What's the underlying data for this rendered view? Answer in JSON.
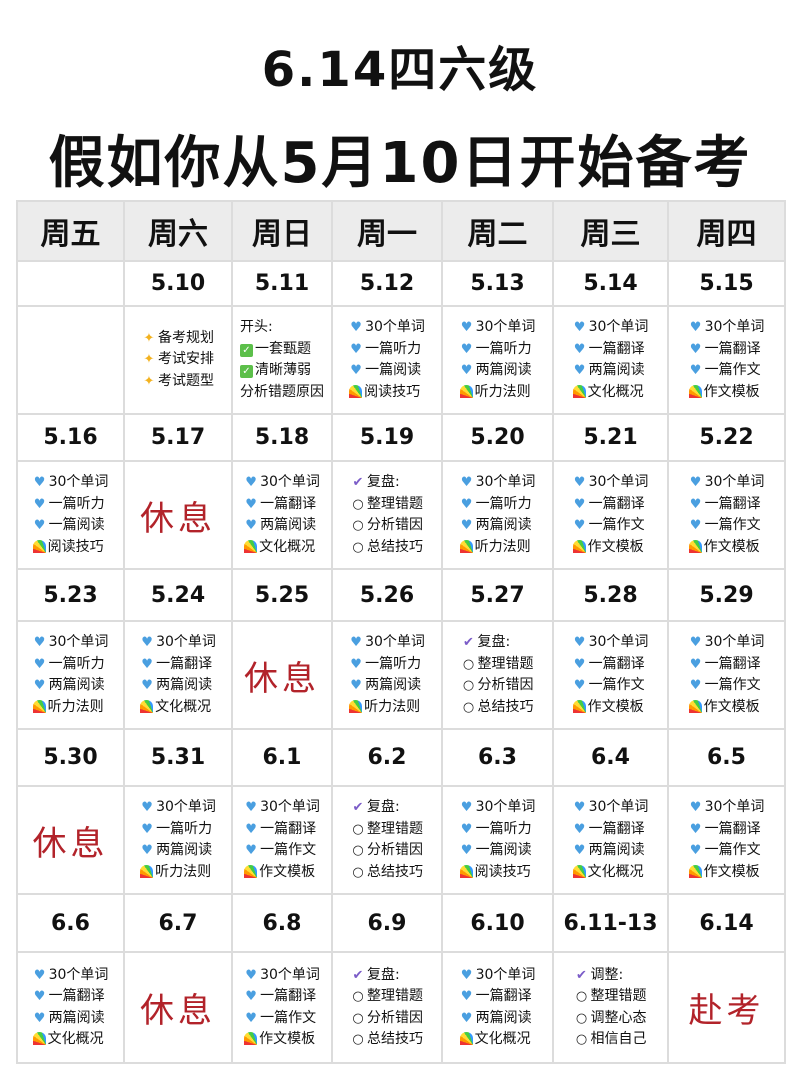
{
  "title_line1": "6.14四六级",
  "title_line2": "假如你从5月10日开始备考",
  "colors": {
    "rest_text": "#b2232a",
    "header_bg": "#ececec",
    "heart": "#4a9fe0"
  },
  "weekdays": [
    "周五",
    "周六",
    "周日",
    "周一",
    "周二",
    "周三",
    "周四"
  ],
  "weeks": [
    {
      "days": [
        {
          "date": "",
          "type": "empty"
        },
        {
          "date": "5.10",
          "type": "tasks",
          "items": [
            {
              "icon": "sparkle",
              "text": "备考规划"
            },
            {
              "icon": "sparkle",
              "text": "考试安排"
            },
            {
              "icon": "sparkle",
              "text": "考试题型"
            }
          ]
        },
        {
          "date": "5.11",
          "type": "tasks",
          "items": [
            {
              "icon": "",
              "text": "开头:"
            },
            {
              "icon": "check-box",
              "text": "一套甄题"
            },
            {
              "icon": "check-box",
              "text": "清晰薄弱"
            },
            {
              "icon": "",
              "text": "分析错题原因"
            }
          ]
        },
        {
          "date": "5.12",
          "type": "tasks",
          "items": [
            {
              "icon": "heart",
              "text": "30个单词"
            },
            {
              "icon": "heart",
              "text": "一篇听力"
            },
            {
              "icon": "heart",
              "text": "一篇阅读"
            },
            {
              "icon": "rainbow",
              "text": "阅读技巧"
            }
          ]
        },
        {
          "date": "5.13",
          "type": "tasks",
          "items": [
            {
              "icon": "heart",
              "text": "30个单词"
            },
            {
              "icon": "heart",
              "text": "一篇听力"
            },
            {
              "icon": "heart",
              "text": "两篇阅读"
            },
            {
              "icon": "rainbow",
              "text": "听力法则"
            }
          ]
        },
        {
          "date": "5.14",
          "type": "tasks",
          "items": [
            {
              "icon": "heart",
              "text": "30个单词"
            },
            {
              "icon": "heart",
              "text": "一篇翻译"
            },
            {
              "icon": "heart",
              "text": "两篇阅读"
            },
            {
              "icon": "rainbow",
              "text": "文化概况"
            }
          ]
        },
        {
          "date": "5.15",
          "type": "tasks",
          "items": [
            {
              "icon": "heart",
              "text": "30个单词"
            },
            {
              "icon": "heart",
              "text": "一篇翻译"
            },
            {
              "icon": "heart",
              "text": "一篇作文"
            },
            {
              "icon": "rainbow",
              "text": "作文模板"
            }
          ]
        }
      ]
    },
    {
      "days": [
        {
          "date": "5.16",
          "type": "tasks",
          "items": [
            {
              "icon": "heart",
              "text": "30个单词"
            },
            {
              "icon": "heart",
              "text": "一篇听力"
            },
            {
              "icon": "heart",
              "text": "一篇阅读"
            },
            {
              "icon": "rainbow",
              "text": "阅读技巧"
            }
          ]
        },
        {
          "date": "5.17",
          "type": "rest",
          "text": "休息"
        },
        {
          "date": "5.18",
          "type": "tasks",
          "items": [
            {
              "icon": "heart",
              "text": "30个单词"
            },
            {
              "icon": "heart",
              "text": "一篇翻译"
            },
            {
              "icon": "heart",
              "text": "两篇阅读"
            },
            {
              "icon": "rainbow",
              "text": "文化概况"
            }
          ]
        },
        {
          "date": "5.19",
          "type": "tasks",
          "items": [
            {
              "icon": "check",
              "text": "复盘:"
            },
            {
              "icon": "circle",
              "text": "整理错题"
            },
            {
              "icon": "circle",
              "text": "分析错因"
            },
            {
              "icon": "circle",
              "text": "总结技巧"
            }
          ]
        },
        {
          "date": "5.20",
          "type": "tasks",
          "items": [
            {
              "icon": "heart",
              "text": "30个单词"
            },
            {
              "icon": "heart",
              "text": "一篇听力"
            },
            {
              "icon": "heart",
              "text": "两篇阅读"
            },
            {
              "icon": "rainbow",
              "text": "听力法则"
            }
          ]
        },
        {
          "date": "5.21",
          "type": "tasks",
          "items": [
            {
              "icon": "heart",
              "text": "30个单词"
            },
            {
              "icon": "heart",
              "text": "一篇翻译"
            },
            {
              "icon": "heart",
              "text": "一篇作文"
            },
            {
              "icon": "rainbow",
              "text": "作文模板"
            }
          ]
        },
        {
          "date": "5.22",
          "type": "tasks",
          "items": [
            {
              "icon": "heart",
              "text": "30个单词"
            },
            {
              "icon": "heart",
              "text": "一篇翻译"
            },
            {
              "icon": "heart",
              "text": "一篇作文"
            },
            {
              "icon": "rainbow",
              "text": "作文模板"
            }
          ]
        }
      ]
    },
    {
      "days": [
        {
          "date": "5.23",
          "type": "tasks",
          "items": [
            {
              "icon": "heart",
              "text": "30个单词"
            },
            {
              "icon": "heart",
              "text": "一篇听力"
            },
            {
              "icon": "heart",
              "text": "两篇阅读"
            },
            {
              "icon": "rainbow",
              "text": "听力法则"
            }
          ]
        },
        {
          "date": "5.24",
          "type": "tasks",
          "items": [
            {
              "icon": "heart",
              "text": "30个单词"
            },
            {
              "icon": "heart",
              "text": "一篇翻译"
            },
            {
              "icon": "heart",
              "text": "两篇阅读"
            },
            {
              "icon": "rainbow",
              "text": "文化概况"
            }
          ]
        },
        {
          "date": "5.25",
          "type": "rest",
          "text": "休息"
        },
        {
          "date": "5.26",
          "type": "tasks",
          "items": [
            {
              "icon": "heart",
              "text": "30个单词"
            },
            {
              "icon": "heart",
              "text": "一篇听力"
            },
            {
              "icon": "heart",
              "text": "两篇阅读"
            },
            {
              "icon": "rainbow",
              "text": "听力法则"
            }
          ]
        },
        {
          "date": "5.27",
          "type": "tasks",
          "items": [
            {
              "icon": "check",
              "text": "复盘:"
            },
            {
              "icon": "circle",
              "text": "整理错题"
            },
            {
              "icon": "circle",
              "text": "分析错因"
            },
            {
              "icon": "circle",
              "text": "总结技巧"
            }
          ]
        },
        {
          "date": "5.28",
          "type": "tasks",
          "items": [
            {
              "icon": "heart",
              "text": "30个单词"
            },
            {
              "icon": "heart",
              "text": "一篇翻译"
            },
            {
              "icon": "heart",
              "text": "一篇作文"
            },
            {
              "icon": "rainbow",
              "text": "作文模板"
            }
          ]
        },
        {
          "date": "5.29",
          "type": "tasks",
          "items": [
            {
              "icon": "heart",
              "text": "30个单词"
            },
            {
              "icon": "heart",
              "text": "一篇翻译"
            },
            {
              "icon": "heart",
              "text": "一篇作文"
            },
            {
              "icon": "rainbow",
              "text": "作文模板"
            }
          ]
        }
      ]
    },
    {
      "days": [
        {
          "date": "5.30",
          "type": "rest",
          "text": "休息"
        },
        {
          "date": "5.31",
          "type": "tasks",
          "items": [
            {
              "icon": "heart",
              "text": "30个单词"
            },
            {
              "icon": "heart",
              "text": "一篇听力"
            },
            {
              "icon": "heart",
              "text": "两篇阅读"
            },
            {
              "icon": "rainbow",
              "text": "听力法则"
            }
          ]
        },
        {
          "date": "6.1",
          "type": "tasks",
          "items": [
            {
              "icon": "heart",
              "text": "30个单词"
            },
            {
              "icon": "heart",
              "text": "一篇翻译"
            },
            {
              "icon": "heart",
              "text": "一篇作文"
            },
            {
              "icon": "rainbow",
              "text": "作文模板"
            }
          ]
        },
        {
          "date": "6.2",
          "type": "tasks",
          "items": [
            {
              "icon": "check",
              "text": "复盘:"
            },
            {
              "icon": "circle",
              "text": "整理错题"
            },
            {
              "icon": "circle",
              "text": "分析错因"
            },
            {
              "icon": "circle",
              "text": "总结技巧"
            }
          ]
        },
        {
          "date": "6.3",
          "type": "tasks",
          "items": [
            {
              "icon": "heart",
              "text": "30个单词"
            },
            {
              "icon": "heart",
              "text": "一篇听力"
            },
            {
              "icon": "heart",
              "text": "一篇阅读"
            },
            {
              "icon": "rainbow",
              "text": "阅读技巧"
            }
          ]
        },
        {
          "date": "6.4",
          "type": "tasks",
          "items": [
            {
              "icon": "heart",
              "text": "30个单词"
            },
            {
              "icon": "heart",
              "text": "一篇翻译"
            },
            {
              "icon": "heart",
              "text": "两篇阅读"
            },
            {
              "icon": "rainbow",
              "text": "文化概况"
            }
          ]
        },
        {
          "date": "6.5",
          "type": "tasks",
          "items": [
            {
              "icon": "heart",
              "text": "30个单词"
            },
            {
              "icon": "heart",
              "text": "一篇翻译"
            },
            {
              "icon": "heart",
              "text": "一篇作文"
            },
            {
              "icon": "rainbow",
              "text": "作文模板"
            }
          ]
        }
      ]
    },
    {
      "days": [
        {
          "date": "6.6",
          "type": "tasks",
          "items": [
            {
              "icon": "heart",
              "text": "30个单词"
            },
            {
              "icon": "heart",
              "text": "一篇翻译"
            },
            {
              "icon": "heart",
              "text": "两篇阅读"
            },
            {
              "icon": "rainbow",
              "text": "文化概况"
            }
          ]
        },
        {
          "date": "6.7",
          "type": "rest",
          "text": "休息"
        },
        {
          "date": "6.8",
          "type": "tasks",
          "items": [
            {
              "icon": "heart",
              "text": "30个单词"
            },
            {
              "icon": "heart",
              "text": "一篇翻译"
            },
            {
              "icon": "heart",
              "text": "一篇作文"
            },
            {
              "icon": "rainbow",
              "text": "作文模板"
            }
          ]
        },
        {
          "date": "6.9",
          "type": "tasks",
          "items": [
            {
              "icon": "check",
              "text": "复盘:"
            },
            {
              "icon": "circle",
              "text": "整理错题"
            },
            {
              "icon": "circle",
              "text": "分析错因"
            },
            {
              "icon": "circle",
              "text": "总结技巧"
            }
          ]
        },
        {
          "date": "6.10",
          "type": "tasks",
          "items": [
            {
              "icon": "heart",
              "text": "30个单词"
            },
            {
              "icon": "heart",
              "text": "一篇翻译"
            },
            {
              "icon": "heart",
              "text": "两篇阅读"
            },
            {
              "icon": "rainbow",
              "text": "文化概况"
            }
          ]
        },
        {
          "date": "6.11-13",
          "type": "tasks",
          "items": [
            {
              "icon": "check",
              "text": "调整:"
            },
            {
              "icon": "circle",
              "text": "整理错题"
            },
            {
              "icon": "circle",
              "text": "调整心态"
            },
            {
              "icon": "circle",
              "text": "相信自己"
            }
          ]
        },
        {
          "date": "6.14",
          "type": "rest",
          "text": "赴考"
        }
      ]
    }
  ]
}
